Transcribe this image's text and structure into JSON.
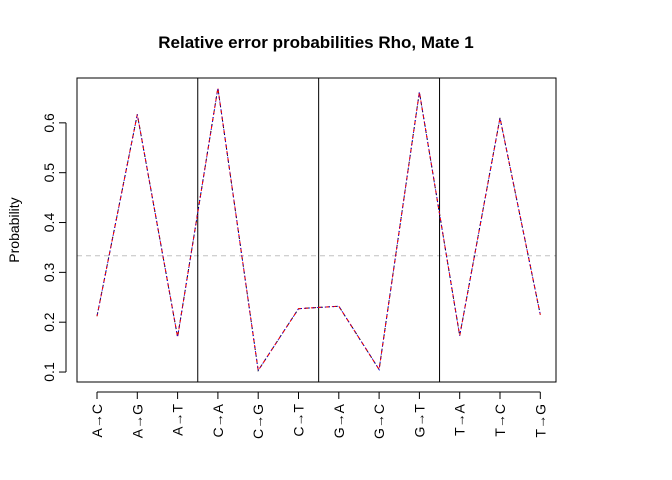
{
  "chart_data": {
    "type": "line",
    "title": "Relative error probabilities Rho, Mate 1",
    "xlabel": "",
    "ylabel": "Probability",
    "categories": [
      "A→C",
      "A→G",
      "A→T",
      "C→A",
      "C→G",
      "C→T",
      "G→A",
      "G→C",
      "G→T",
      "T→A",
      "T→C",
      "T→G"
    ],
    "series": [
      {
        "color": "#000000",
        "style": "dashed",
        "values": [
          0.212,
          0.617,
          0.17,
          0.67,
          0.103,
          0.227,
          0.232,
          0.105,
          0.662,
          0.173,
          0.61,
          0.215
        ]
      },
      {
        "color": "#ff0000",
        "style": "dashed",
        "values": [
          0.212,
          0.617,
          0.17,
          0.67,
          0.103,
          0.227,
          0.232,
          0.105,
          0.662,
          0.173,
          0.61,
          0.215
        ]
      },
      {
        "color": "#0000ff",
        "style": "dotted",
        "values": [
          0.212,
          0.617,
          0.17,
          0.67,
          0.103,
          0.227,
          0.232,
          0.105,
          0.662,
          0.173,
          0.61,
          0.215
        ]
      }
    ],
    "yticks": [
      0.1,
      0.2,
      0.3,
      0.4,
      0.5,
      0.6
    ],
    "ylim": [
      0.08,
      0.69
    ],
    "reference_line": {
      "y": 0.3333,
      "color": "#c0c0c0",
      "style": "dashed"
    },
    "group_separators_after": [
      3,
      6,
      9
    ],
    "grid": false,
    "legend": "none"
  }
}
